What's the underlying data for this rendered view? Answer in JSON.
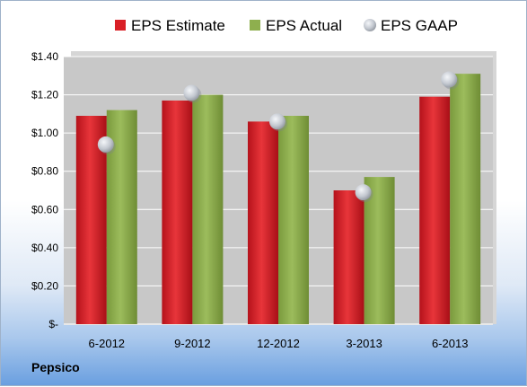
{
  "company": "Pepsico",
  "colors": {
    "estimate": "#d91f26",
    "actual": "#8eaf4e",
    "gaap": "#c9ced6",
    "plot_bg": "#c8c8c8"
  },
  "chart_data": {
    "type": "bar",
    "categories": [
      "6-2012",
      "9-2012",
      "12-2012",
      "3-2013",
      "6-2013"
    ],
    "series": [
      {
        "name": "EPS Estimate",
        "kind": "bar",
        "values": [
          1.09,
          1.17,
          1.06,
          0.7,
          1.19
        ]
      },
      {
        "name": "EPS Actual",
        "kind": "bar",
        "values": [
          1.12,
          1.2,
          1.09,
          0.77,
          1.31
        ]
      },
      {
        "name": "EPS GAAP",
        "kind": "marker",
        "values": [
          0.94,
          1.21,
          1.06,
          0.69,
          1.28
        ]
      }
    ],
    "yticks": [
      0,
      0.2,
      0.4,
      0.6,
      0.8,
      1.0,
      1.2,
      1.4
    ],
    "ytick_labels": [
      "$-",
      "$0.20",
      "$0.40",
      "$0.60",
      "$0.80",
      "$1.00",
      "$1.20",
      "$1.40"
    ],
    "ylim": [
      0,
      1.4
    ],
    "grid": true,
    "legend": "top"
  }
}
